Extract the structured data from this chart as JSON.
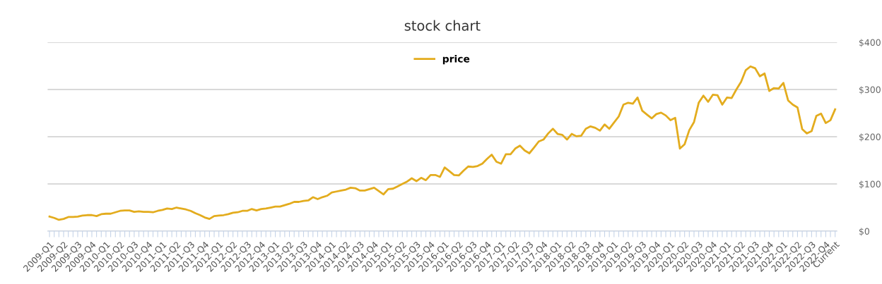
{
  "chart_data": {
    "type": "line",
    "title": "stock chart",
    "categories": [
      "2009-Q1",
      null,
      null,
      "2009-Q2",
      null,
      null,
      "2009-Q3",
      null,
      null,
      "2009-Q4",
      null,
      null,
      "2010-Q1",
      null,
      null,
      "2010-Q2",
      null,
      null,
      "2010-Q3",
      null,
      null,
      "2010-Q4",
      null,
      null,
      "2011-Q1",
      null,
      null,
      "2011-Q2",
      null,
      null,
      "2011-Q3",
      null,
      null,
      "2011-Q4",
      null,
      null,
      "2012-Q1",
      null,
      null,
      "2012-Q2",
      null,
      null,
      "2012-Q3",
      null,
      null,
      "2012-Q4",
      null,
      null,
      "2013-Q1",
      null,
      null,
      "2013-Q2",
      null,
      null,
      "2013-Q3",
      null,
      null,
      "2013-Q4",
      null,
      null,
      "2014-Q1",
      null,
      null,
      "2014-Q2",
      null,
      null,
      "2014-Q3",
      null,
      null,
      "2014-Q4",
      null,
      null,
      "2015-Q1",
      null,
      null,
      "2015-Q2",
      null,
      null,
      "2015-Q3",
      null,
      null,
      "2015-Q4",
      null,
      null,
      "2016-Q1",
      null,
      null,
      "2016-Q2",
      null,
      null,
      "2016-Q3",
      null,
      null,
      "2016-Q4",
      null,
      null,
      "2017-Q1",
      null,
      null,
      "2017-Q2",
      null,
      null,
      "2017-Q3",
      null,
      null,
      "2017-Q4",
      null,
      null,
      "2018-Q1",
      null,
      null,
      "2018-Q2",
      null,
      null,
      "2018-Q3",
      null,
      null,
      "2018-Q4",
      null,
      null,
      "2019-Q1",
      null,
      null,
      "2019-Q2",
      null,
      null,
      "2019-Q3",
      null,
      null,
      "2019-Q4",
      null,
      null,
      "2020-Q1",
      null,
      null,
      "2020-Q2",
      null,
      null,
      "2020-Q3",
      null,
      null,
      "2020-Q4",
      null,
      null,
      "2021-Q1",
      null,
      null,
      "2021-Q2",
      null,
      null,
      "2021-Q3",
      null,
      null,
      "2021-Q4",
      null,
      null,
      "2022-Q1",
      null,
      null,
      "2022-Q2",
      null,
      null,
      "2022-Q3",
      null,
      null,
      "2022-Q4",
      null,
      "Current"
    ],
    "series": [
      {
        "name": "price",
        "color": "#e3ac1e",
        "values": [
          31,
          28,
          24,
          26,
          30,
          30,
          31,
          33,
          34,
          34,
          32,
          36,
          37,
          37,
          40,
          43,
          44,
          44,
          41,
          42,
          41,
          41,
          40,
          43,
          45,
          48,
          47,
          50,
          48,
          46,
          43,
          38,
          34,
          29,
          26,
          32,
          33,
          34,
          36,
          39,
          40,
          43,
          43,
          47,
          44,
          47,
          48,
          50,
          52,
          52,
          55,
          58,
          62,
          62,
          64,
          65,
          72,
          68,
          72,
          75,
          82,
          84,
          86,
          88,
          92,
          91,
          86,
          86,
          89,
          92,
          85,
          78,
          89,
          90,
          95,
          100,
          105,
          112,
          106,
          113,
          108,
          119,
          119,
          115,
          135,
          127,
          119,
          118,
          128,
          137,
          136,
          138,
          143,
          153,
          162,
          147,
          143,
          163,
          163,
          175,
          181,
          171,
          165,
          177,
          190,
          194,
          207,
          217,
          206,
          204,
          194,
          206,
          201,
          202,
          217,
          222,
          219,
          213,
          226,
          217,
          230,
          243,
          268,
          272,
          270,
          283,
          255,
          247,
          239,
          248,
          251,
          245,
          235,
          240,
          175,
          184,
          214,
          231,
          272,
          287,
          274,
          289,
          288,
          268,
          283,
          282,
          300,
          316,
          341,
          349,
          345,
          328,
          334,
          297,
          303,
          302,
          314,
          277,
          268,
          262,
          216,
          207,
          212,
          244,
          249,
          229,
          235,
          258
        ]
      }
    ],
    "ylim": [
      0,
      400
    ],
    "yticks": [
      {
        "value": 0,
        "label": "$0"
      },
      {
        "value": 100,
        "label": "$100"
      },
      {
        "value": 200,
        "label": "$200"
      },
      {
        "value": 300,
        "label": "$300"
      },
      {
        "value": 400,
        "label": "$400"
      }
    ],
    "grid": "y",
    "legend": "top",
    "line_style": "solid"
  }
}
